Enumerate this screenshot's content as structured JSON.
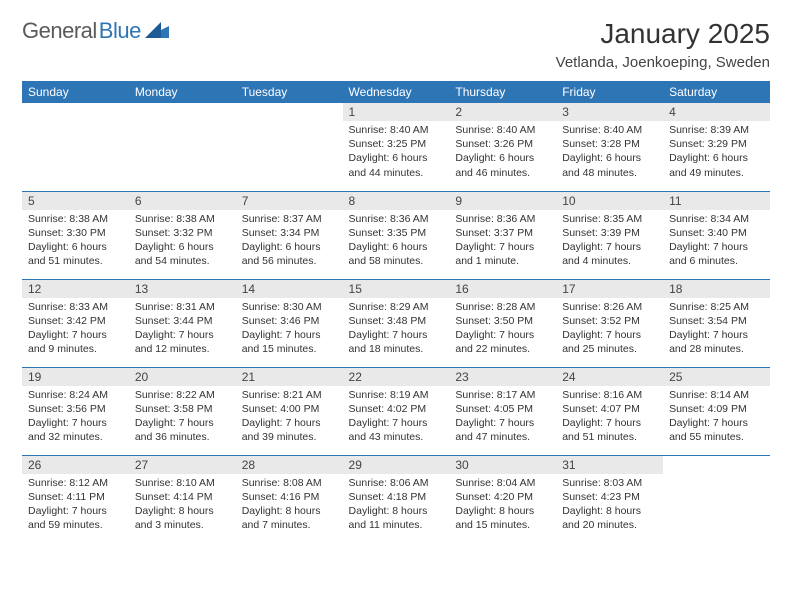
{
  "logo": {
    "general": "General",
    "blue": "Blue"
  },
  "title": "January 2025",
  "location": "Vetlanda, Joenkoeping, Sweden",
  "colors": {
    "header_bg": "#2e75b6",
    "header_fg": "#ffffff",
    "daynum_bg": "#e9e9e9",
    "row_border": "#2e75b6",
    "logo_blue": "#2e75b6",
    "logo_gray": "#5a5a5a"
  },
  "dayHeaders": [
    "Sunday",
    "Monday",
    "Tuesday",
    "Wednesday",
    "Thursday",
    "Friday",
    "Saturday"
  ],
  "weeks": [
    [
      {
        "empty": true
      },
      {
        "empty": true
      },
      {
        "empty": true
      },
      {
        "num": "1",
        "sunrise": "8:40 AM",
        "sunset": "3:25 PM",
        "daylight": "6 hours and 44 minutes."
      },
      {
        "num": "2",
        "sunrise": "8:40 AM",
        "sunset": "3:26 PM",
        "daylight": "6 hours and 46 minutes."
      },
      {
        "num": "3",
        "sunrise": "8:40 AM",
        "sunset": "3:28 PM",
        "daylight": "6 hours and 48 minutes."
      },
      {
        "num": "4",
        "sunrise": "8:39 AM",
        "sunset": "3:29 PM",
        "daylight": "6 hours and 49 minutes."
      }
    ],
    [
      {
        "num": "5",
        "sunrise": "8:38 AM",
        "sunset": "3:30 PM",
        "daylight": "6 hours and 51 minutes."
      },
      {
        "num": "6",
        "sunrise": "8:38 AM",
        "sunset": "3:32 PM",
        "daylight": "6 hours and 54 minutes."
      },
      {
        "num": "7",
        "sunrise": "8:37 AM",
        "sunset": "3:34 PM",
        "daylight": "6 hours and 56 minutes."
      },
      {
        "num": "8",
        "sunrise": "8:36 AM",
        "sunset": "3:35 PM",
        "daylight": "6 hours and 58 minutes."
      },
      {
        "num": "9",
        "sunrise": "8:36 AM",
        "sunset": "3:37 PM",
        "daylight": "7 hours and 1 minute."
      },
      {
        "num": "10",
        "sunrise": "8:35 AM",
        "sunset": "3:39 PM",
        "daylight": "7 hours and 4 minutes."
      },
      {
        "num": "11",
        "sunrise": "8:34 AM",
        "sunset": "3:40 PM",
        "daylight": "7 hours and 6 minutes."
      }
    ],
    [
      {
        "num": "12",
        "sunrise": "8:33 AM",
        "sunset": "3:42 PM",
        "daylight": "7 hours and 9 minutes."
      },
      {
        "num": "13",
        "sunrise": "8:31 AM",
        "sunset": "3:44 PM",
        "daylight": "7 hours and 12 minutes."
      },
      {
        "num": "14",
        "sunrise": "8:30 AM",
        "sunset": "3:46 PM",
        "daylight": "7 hours and 15 minutes."
      },
      {
        "num": "15",
        "sunrise": "8:29 AM",
        "sunset": "3:48 PM",
        "daylight": "7 hours and 18 minutes."
      },
      {
        "num": "16",
        "sunrise": "8:28 AM",
        "sunset": "3:50 PM",
        "daylight": "7 hours and 22 minutes."
      },
      {
        "num": "17",
        "sunrise": "8:26 AM",
        "sunset": "3:52 PM",
        "daylight": "7 hours and 25 minutes."
      },
      {
        "num": "18",
        "sunrise": "8:25 AM",
        "sunset": "3:54 PM",
        "daylight": "7 hours and 28 minutes."
      }
    ],
    [
      {
        "num": "19",
        "sunrise": "8:24 AM",
        "sunset": "3:56 PM",
        "daylight": "7 hours and 32 minutes."
      },
      {
        "num": "20",
        "sunrise": "8:22 AM",
        "sunset": "3:58 PM",
        "daylight": "7 hours and 36 minutes."
      },
      {
        "num": "21",
        "sunrise": "8:21 AM",
        "sunset": "4:00 PM",
        "daylight": "7 hours and 39 minutes."
      },
      {
        "num": "22",
        "sunrise": "8:19 AM",
        "sunset": "4:02 PM",
        "daylight": "7 hours and 43 minutes."
      },
      {
        "num": "23",
        "sunrise": "8:17 AM",
        "sunset": "4:05 PM",
        "daylight": "7 hours and 47 minutes."
      },
      {
        "num": "24",
        "sunrise": "8:16 AM",
        "sunset": "4:07 PM",
        "daylight": "7 hours and 51 minutes."
      },
      {
        "num": "25",
        "sunrise": "8:14 AM",
        "sunset": "4:09 PM",
        "daylight": "7 hours and 55 minutes."
      }
    ],
    [
      {
        "num": "26",
        "sunrise": "8:12 AM",
        "sunset": "4:11 PM",
        "daylight": "7 hours and 59 minutes."
      },
      {
        "num": "27",
        "sunrise": "8:10 AM",
        "sunset": "4:14 PM",
        "daylight": "8 hours and 3 minutes."
      },
      {
        "num": "28",
        "sunrise": "8:08 AM",
        "sunset": "4:16 PM",
        "daylight": "8 hours and 7 minutes."
      },
      {
        "num": "29",
        "sunrise": "8:06 AM",
        "sunset": "4:18 PM",
        "daylight": "8 hours and 11 minutes."
      },
      {
        "num": "30",
        "sunrise": "8:04 AM",
        "sunset": "4:20 PM",
        "daylight": "8 hours and 15 minutes."
      },
      {
        "num": "31",
        "sunrise": "8:03 AM",
        "sunset": "4:23 PM",
        "daylight": "8 hours and 20 minutes."
      },
      {
        "empty": true
      }
    ]
  ],
  "labels": {
    "sunrise": "Sunrise: ",
    "sunset": "Sunset: ",
    "daylight": "Daylight: "
  }
}
